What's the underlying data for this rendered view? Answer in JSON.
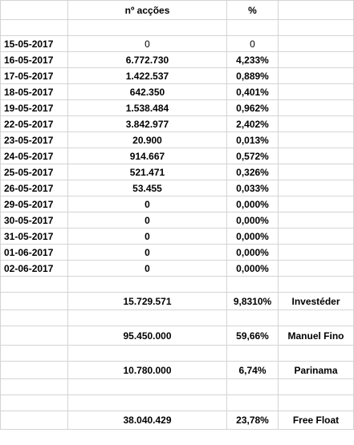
{
  "headers": {
    "col_b": "nº acções",
    "col_c": "%"
  },
  "daily_rows": [
    {
      "date": "15-05-2017",
      "shares": "0",
      "pct": "0"
    },
    {
      "date": "16-05-2017",
      "shares": "6.772.730",
      "pct": "4,233%"
    },
    {
      "date": "17-05-2017",
      "shares": "1.422.537",
      "pct": "0,889%"
    },
    {
      "date": "18-05-2017",
      "shares": "642.350",
      "pct": "0,401%"
    },
    {
      "date": "19-05-2017",
      "shares": "1.538.484",
      "pct": "0,962%"
    },
    {
      "date": "22-05-2017",
      "shares": "3.842.977",
      "pct": "2,402%"
    },
    {
      "date": "23-05-2017",
      "shares": "20.900",
      "pct": "0,013%"
    },
    {
      "date": "24-05-2017",
      "shares": "914.667",
      "pct": "0,572%"
    },
    {
      "date": "25-05-2017",
      "shares": "521.471",
      "pct": "0,326%"
    },
    {
      "date": "26-05-2017",
      "shares": "53.455",
      "pct": "0,033%"
    },
    {
      "date": "29-05-2017",
      "shares": "0",
      "pct": "0,000%"
    },
    {
      "date": "30-05-2017",
      "shares": "0",
      "pct": "0,000%"
    },
    {
      "date": "31-05-2017",
      "shares": "0",
      "pct": "0,000%"
    },
    {
      "date": "01-06-2017",
      "shares": "0",
      "pct": "0,000%"
    },
    {
      "date": "02-06-2017",
      "shares": "0",
      "pct": "0,000%"
    }
  ],
  "summary": [
    {
      "shares": "15.729.571",
      "pct": "9,8310%",
      "holder": "Investéder"
    },
    {
      "shares": "95.450.000",
      "pct": "59,66%",
      "holder": "Manuel Fino"
    },
    {
      "shares": "10.780.000",
      "pct": "6,74%",
      "holder": "Parinama"
    },
    {
      "shares": "38.040.429",
      "pct": "23,78%",
      "holder": "Free Float"
    }
  ]
}
